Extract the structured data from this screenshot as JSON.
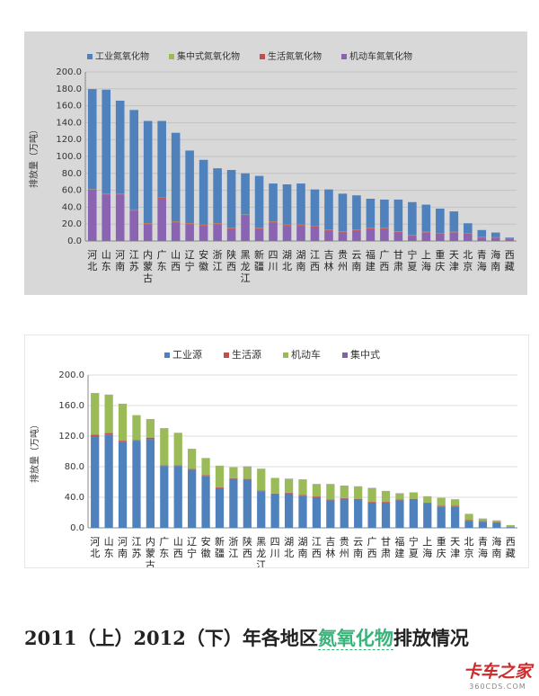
{
  "chart_data": [
    {
      "type": "bar",
      "stacked": true,
      "title": "",
      "ylabel": "排放量（万吨）",
      "ylim": [
        0,
        200
      ],
      "yticks": [
        "0.0",
        "20.0",
        "40.0",
        "60.0",
        "80.0",
        "100.0",
        "120.0",
        "140.0",
        "160.0",
        "180.0",
        "200.0"
      ],
      "grid": true,
      "legend_position": "top",
      "legend_order": [
        3,
        2,
        1,
        0
      ],
      "categories": [
        [
          "河",
          "北"
        ],
        [
          "山",
          "东"
        ],
        [
          "河",
          "南"
        ],
        [
          "江",
          "苏"
        ],
        [
          "内",
          "蒙",
          "古"
        ],
        [
          "广",
          "东"
        ],
        [
          "山",
          "西"
        ],
        [
          "辽",
          "宁"
        ],
        [
          "安",
          "徽"
        ],
        [
          "浙",
          "江"
        ],
        [
          "陕",
          "西"
        ],
        [
          "黑",
          "龙",
          "江"
        ],
        [
          "新",
          "疆"
        ],
        [
          "四",
          "川"
        ],
        [
          "湖",
          "北"
        ],
        [
          "湖",
          "南"
        ],
        [
          "江",
          "西"
        ],
        [
          "吉",
          "林"
        ],
        [
          "贵",
          "州"
        ],
        [
          "云",
          "南"
        ],
        [
          "福",
          "建"
        ],
        [
          "广",
          "西"
        ],
        [
          "甘",
          "肃"
        ],
        [
          "宁",
          "夏"
        ],
        [
          "上",
          "海"
        ],
        [
          "重",
          "庆"
        ],
        [
          "天",
          "津"
        ],
        [
          "北",
          "京"
        ],
        [
          "青",
          "海"
        ],
        [
          "海",
          "南"
        ],
        [
          "西",
          "藏"
        ]
      ],
      "series": [
        {
          "name": "机动车氮氧化物",
          "color": "#8a63b2",
          "values": [
            60,
            55,
            55,
            36,
            20,
            50,
            22,
            20,
            18,
            20,
            14,
            30,
            14,
            22,
            18,
            18,
            16,
            12,
            10,
            12,
            14,
            14,
            10,
            6,
            10,
            8,
            10,
            8,
            4,
            4,
            2
          ]
        },
        {
          "name": "生活氮氧化物",
          "color": "#c0504d",
          "values": [
            1,
            1,
            1,
            1,
            1,
            1,
            1,
            1,
            1,
            1,
            1,
            1,
            1,
            1,
            1,
            1,
            1,
            1,
            1,
            1,
            1,
            1,
            1,
            0.5,
            0.5,
            0.5,
            0.5,
            0.5,
            0.5,
            0.2,
            0.2
          ]
        },
        {
          "name": "集中式氮氧化物",
          "color": "#9bbb59",
          "values": [
            0.3,
            0.3,
            0.3,
            0.3,
            0.3,
            0.3,
            0.3,
            0.3,
            0.3,
            0.3,
            0.3,
            0.3,
            0.3,
            0.3,
            0.3,
            0.3,
            0.3,
            0.3,
            0.3,
            0.3,
            0.3,
            0.3,
            0.3,
            0.3,
            0.3,
            0.3,
            0.3,
            0.3,
            0.2,
            0.2,
            0.1
          ]
        },
        {
          "name": "工业氮氧化物",
          "color": "#4f81bd",
          "values": [
            118.4,
            122.7,
            109.7,
            117.7,
            120.7,
            90.7,
            104.7,
            85.7,
            76.7,
            64.7,
            68.7,
            48.7,
            61.7,
            44.7,
            47.7,
            48.7,
            43.7,
            47.7,
            44.7,
            40.7,
            34.7,
            33.7,
            37.7,
            39.2,
            32.2,
            29.5,
            24.2,
            12.2,
            8.3,
            5.6,
            1.7
          ]
        }
      ]
    },
    {
      "type": "bar",
      "stacked": true,
      "title": "",
      "ylabel": "排放量（万吨）",
      "ylim": [
        0,
        200
      ],
      "yticks": [
        "0.0",
        "40.0",
        "80.0",
        "120.0",
        "160.0",
        "200.0"
      ],
      "grid": true,
      "legend_position": "top",
      "legend_order": [
        0,
        1,
        2,
        3
      ],
      "categories": [
        [
          "河",
          "北"
        ],
        [
          "山",
          "东"
        ],
        [
          "河",
          "南"
        ],
        [
          "江",
          "苏"
        ],
        [
          "内",
          "蒙",
          "古"
        ],
        [
          "广",
          "东"
        ],
        [
          "山",
          "西"
        ],
        [
          "辽",
          "宁"
        ],
        [
          "安",
          "徽"
        ],
        [
          "新",
          "疆"
        ],
        [
          "浙",
          "江"
        ],
        [
          "陕",
          "西"
        ],
        [
          "黑",
          "龙",
          "江"
        ],
        [
          "四",
          "川"
        ],
        [
          "湖",
          "北"
        ],
        [
          "湖",
          "南"
        ],
        [
          "江",
          "西"
        ],
        [
          "吉",
          "林"
        ],
        [
          "贵",
          "州"
        ],
        [
          "云",
          "南"
        ],
        [
          "广",
          "西"
        ],
        [
          "甘",
          "肃"
        ],
        [
          "福",
          "建"
        ],
        [
          "宁",
          "夏"
        ],
        [
          "上",
          "海"
        ],
        [
          "重",
          "庆"
        ],
        [
          "天",
          "津"
        ],
        [
          "北",
          "京"
        ],
        [
          "青",
          "海"
        ],
        [
          "海",
          "南"
        ],
        [
          "西",
          "藏"
        ]
      ],
      "series": [
        {
          "name": "工业源",
          "color": "#4f81bd",
          "values": [
            120,
            122,
            112,
            114,
            116,
            81,
            81,
            76,
            68,
            52,
            64,
            63,
            48,
            44,
            45,
            42,
            40,
            36,
            38,
            37,
            33,
            33,
            36,
            37,
            32,
            28,
            28,
            9,
            8,
            7,
            1
          ]
        },
        {
          "name": "生活源",
          "color": "#c0504d",
          "values": [
            2,
            2,
            2,
            1,
            2,
            1,
            1,
            1,
            1,
            1,
            1,
            1,
            1,
            1,
            1,
            1,
            1,
            1,
            1,
            1,
            1,
            1,
            1,
            1,
            1,
            1,
            1,
            1,
            1,
            0.5,
            0.5
          ]
        },
        {
          "name": "机动车",
          "color": "#9bbb59",
          "values": [
            54,
            50,
            48,
            32,
            24,
            48,
            42,
            26,
            22,
            28,
            14,
            16,
            28,
            20,
            18,
            20,
            16,
            20,
            16,
            16,
            18,
            14,
            8,
            8,
            8,
            10,
            8,
            8,
            3,
            2,
            2
          ]
        },
        {
          "name": "集中式",
          "color": "#8064a2",
          "values": [
            0.3,
            0.3,
            0.3,
            0.3,
            0.3,
            0.3,
            0.3,
            0.3,
            0.3,
            0.3,
            0.3,
            0.3,
            0.3,
            0.3,
            0.3,
            0.3,
            0.3,
            0.3,
            0.3,
            0.3,
            0.3,
            0.3,
            0.3,
            0.3,
            0.3,
            0.3,
            0.3,
            0.3,
            0.2,
            0.2,
            0.1
          ]
        }
      ]
    }
  ],
  "caption": {
    "before": "2011（上）2012（下）年各地区",
    "highlight": "氮氧化物",
    "after": "排放情况"
  },
  "watermark": {
    "main": "卡车之家",
    "sub": "360CDS.COM"
  }
}
